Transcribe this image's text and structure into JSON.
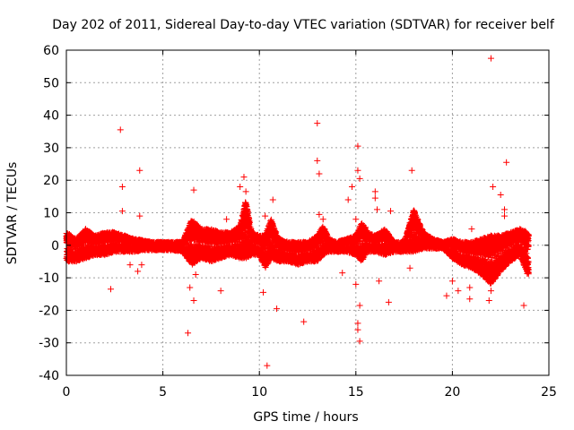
{
  "chart_data": {
    "type": "scatter",
    "title": "Day 202 of 2011, Sidereal Day-to-day VTEC variation (SDTVAR) for receiver belf",
    "xlabel": "GPS time / hours",
    "ylabel": "SDTVAR / TECUs",
    "xlim": [
      0,
      25
    ],
    "ylim": [
      -40,
      60
    ],
    "xticks": [
      0,
      5,
      10,
      15,
      20,
      25
    ],
    "yticks": [
      -40,
      -30,
      -20,
      -10,
      0,
      10,
      20,
      30,
      40,
      50,
      60
    ],
    "xtick_labels": [
      "0",
      "5",
      "10",
      "15",
      "20",
      "25"
    ],
    "ytick_labels": [
      "-40",
      "-30",
      "-20",
      "-10",
      "0",
      "10",
      "20",
      "30",
      "40",
      "50",
      "60"
    ],
    "grid": true,
    "marker": "+",
    "color": "#ff0000",
    "x_data_range": [
      0,
      23.95
    ],
    "band": {
      "description_points": [
        [
          0.0,
          -5,
          4
        ],
        [
          0.5,
          -5,
          2
        ],
        [
          1.0,
          -4,
          5
        ],
        [
          1.5,
          -3,
          3
        ],
        [
          2.0,
          -3,
          4
        ],
        [
          2.5,
          -2,
          4
        ],
        [
          3.0,
          -2,
          3
        ],
        [
          3.5,
          -2,
          2
        ],
        [
          4.0,
          -1.5,
          1.5
        ],
        [
          4.5,
          -1.5,
          1
        ],
        [
          5.0,
          -1.5,
          1
        ],
        [
          5.5,
          -1.5,
          1
        ],
        [
          6.0,
          -2,
          1
        ],
        [
          6.5,
          -6,
          8
        ],
        [
          7.0,
          -4,
          5
        ],
        [
          7.5,
          -5,
          5
        ],
        [
          8.0,
          -4,
          4
        ],
        [
          8.5,
          -3,
          4
        ],
        [
          9.0,
          -4,
          6
        ],
        [
          9.3,
          -4,
          14
        ],
        [
          9.6,
          -3,
          4
        ],
        [
          10.0,
          -3,
          3
        ],
        [
          10.3,
          -7,
          3
        ],
        [
          10.6,
          -4,
          8
        ],
        [
          11.0,
          -5,
          2
        ],
        [
          11.5,
          -5,
          1
        ],
        [
          12.0,
          -6,
          1
        ],
        [
          12.5,
          -5,
          1
        ],
        [
          13.0,
          -5,
          3
        ],
        [
          13.3,
          -3,
          6
        ],
        [
          13.6,
          -2,
          2
        ],
        [
          14.0,
          -2,
          1
        ],
        [
          14.5,
          -2,
          2
        ],
        [
          15.0,
          -3,
          3
        ],
        [
          15.3,
          -5,
          7
        ],
        [
          15.6,
          -2,
          4
        ],
        [
          16.0,
          -2,
          3
        ],
        [
          16.5,
          -3,
          5
        ],
        [
          17.0,
          -2,
          1
        ],
        [
          17.5,
          -2,
          1
        ],
        [
          18.0,
          -2,
          11
        ],
        [
          18.5,
          -1,
          4
        ],
        [
          19.0,
          -1,
          2
        ],
        [
          19.5,
          -1,
          1
        ],
        [
          20.0,
          -4,
          2
        ],
        [
          20.5,
          -6,
          1
        ],
        [
          21.0,
          -7,
          1
        ],
        [
          21.5,
          -9,
          2
        ],
        [
          22.0,
          -12,
          3
        ],
        [
          22.5,
          -8,
          3
        ],
        [
          23.0,
          -5,
          4
        ],
        [
          23.5,
          -3,
          5
        ],
        [
          23.9,
          -9,
          4
        ]
      ]
    },
    "series": [
      {
        "name": "SDTVAR outliers",
        "points": [
          [
            0.2,
            -2
          ],
          [
            1.0,
            5
          ],
          [
            2.3,
            -13.5
          ],
          [
            2.4,
            4
          ],
          [
            2.8,
            35.5
          ],
          [
            2.9,
            18
          ],
          [
            2.9,
            10.5
          ],
          [
            3.3,
            -6
          ],
          [
            3.7,
            -8
          ],
          [
            3.8,
            23
          ],
          [
            3.8,
            9
          ],
          [
            3.9,
            -6
          ],
          [
            6.3,
            -27
          ],
          [
            6.4,
            -13
          ],
          [
            6.6,
            -17
          ],
          [
            6.6,
            17
          ],
          [
            6.7,
            -9
          ],
          [
            8.0,
            -14
          ],
          [
            8.3,
            8
          ],
          [
            9.0,
            18
          ],
          [
            9.2,
            21
          ],
          [
            9.3,
            16.5
          ],
          [
            10.2,
            -14.5
          ],
          [
            10.3,
            9
          ],
          [
            10.4,
            -37
          ],
          [
            10.6,
            5
          ],
          [
            10.7,
            14
          ],
          [
            10.9,
            -19.5
          ],
          [
            12.3,
            -23.5
          ],
          [
            13.0,
            37.5
          ],
          [
            13.0,
            26
          ],
          [
            13.1,
            22
          ],
          [
            13.1,
            9.5
          ],
          [
            13.3,
            8
          ],
          [
            14.3,
            -8.5
          ],
          [
            14.6,
            14
          ],
          [
            14.8,
            18
          ],
          [
            15.0,
            -12
          ],
          [
            15.1,
            -24
          ],
          [
            15.1,
            -26
          ],
          [
            15.2,
            -29.5
          ],
          [
            15.2,
            -18.5
          ],
          [
            15.1,
            30.5
          ],
          [
            15.1,
            23
          ],
          [
            15.2,
            20.5
          ],
          [
            15.0,
            8
          ],
          [
            15.5,
            5.5
          ],
          [
            16.0,
            16.5
          ],
          [
            16.0,
            14.5
          ],
          [
            16.1,
            11
          ],
          [
            16.2,
            -11
          ],
          [
            16.7,
            -17.5
          ],
          [
            16.8,
            10.5
          ],
          [
            17.9,
            23
          ],
          [
            17.8,
            -7
          ],
          [
            19.7,
            -15.5
          ],
          [
            20.0,
            -11
          ],
          [
            20.3,
            -14
          ],
          [
            20.9,
            -16.5
          ],
          [
            20.9,
            -13
          ],
          [
            21.0,
            5
          ],
          [
            22.0,
            57.5
          ],
          [
            22.1,
            18
          ],
          [
            22.5,
            15.5
          ],
          [
            22.7,
            11
          ],
          [
            22.8,
            25.5
          ],
          [
            22.7,
            9
          ],
          [
            21.9,
            -17
          ],
          [
            22.0,
            -14
          ],
          [
            23.7,
            -18.5
          ],
          [
            23.5,
            5
          ]
        ]
      }
    ]
  },
  "colors": {
    "series": "#ff0000",
    "grid": "#a0a0a0",
    "axis": "#000000",
    "background": "#ffffff"
  }
}
